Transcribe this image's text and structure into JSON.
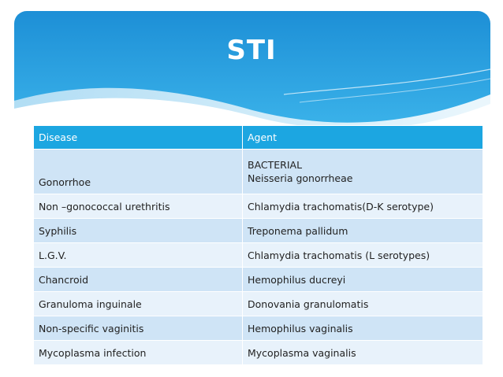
{
  "slide": {
    "title": "STI"
  },
  "table": {
    "headers": [
      "Disease",
      "Agent"
    ],
    "rows": [
      {
        "disease": "Gonorrhoe",
        "agent_line1": "BACTERIAL",
        "agent_line2": "Neisseria gonorrheae"
      },
      {
        "disease": "Non –gonococcal urethritis",
        "agent": "Chlamydia trachomatis(D-K serotype)"
      },
      {
        "disease": "Syphilis",
        "agent": "Treponema pallidum"
      },
      {
        "disease": "L.G.V.",
        "agent": "Chlamydia trachomatis (L serotypes)"
      },
      {
        "disease": "Chancroid",
        "agent": "Hemophilus ducreyi"
      },
      {
        "disease": "Granuloma inguinale",
        "agent": "Donovania granulomatis"
      },
      {
        "disease": "Non-specific vaginitis",
        "agent": "Hemophilus vaginalis"
      },
      {
        "disease": "Mycoplasma infection",
        "agent": "Mycoplasma vaginalis"
      }
    ]
  },
  "colors": {
    "header_blue": "#1ca6e1",
    "row_dark": "#cfe4f6",
    "row_light": "#e8f2fb",
    "title_text": "#ffffff"
  }
}
